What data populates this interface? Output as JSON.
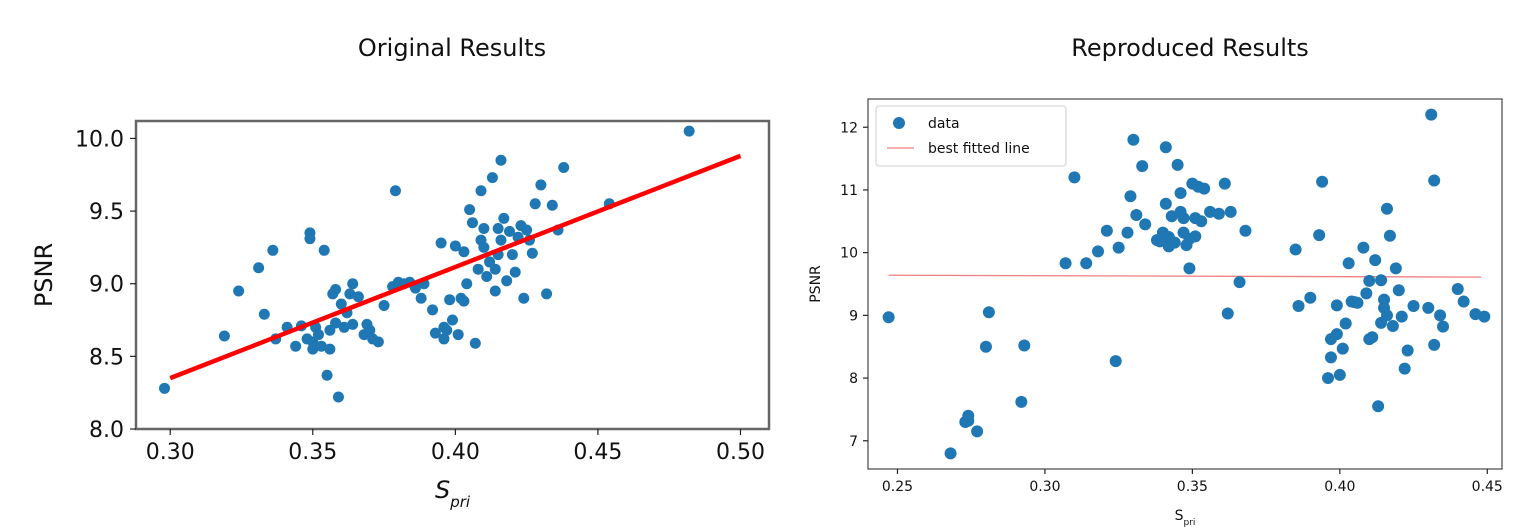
{
  "page": {
    "left_title": "Original Results",
    "right_title": "Reproduced Results"
  },
  "chart_data": [
    {
      "type": "scatter",
      "title": "Original Results",
      "xlabel": "S_pri",
      "xlabel_main": "S",
      "xlabel_sub": "pri",
      "ylabel": "PSNR",
      "xlim": [
        0.288,
        0.51
      ],
      "ylim": [
        8.0,
        10.12
      ],
      "xticks": [
        0.3,
        0.35,
        0.4,
        0.45,
        0.5
      ],
      "xtick_labels": [
        "0.30",
        "0.35",
        "0.40",
        "0.45",
        "0.50"
      ],
      "yticks": [
        8.0,
        8.5,
        9.0,
        9.5,
        10.0
      ],
      "ytick_labels": [
        "8.0",
        "8.5",
        "9.0",
        "9.5",
        "10.0"
      ],
      "grid": false,
      "legend": "none",
      "point_color": "#1f77b4",
      "line_color": "#ff0000",
      "fit_line": {
        "x": [
          0.3,
          0.5
        ],
        "y": [
          8.35,
          9.88
        ]
      },
      "x": [
        0.298,
        0.319,
        0.324,
        0.331,
        0.333,
        0.336,
        0.337,
        0.341,
        0.344,
        0.346,
        0.348,
        0.349,
        0.349,
        0.35,
        0.35,
        0.351,
        0.352,
        0.353,
        0.354,
        0.355,
        0.356,
        0.356,
        0.357,
        0.358,
        0.358,
        0.359,
        0.36,
        0.361,
        0.362,
        0.363,
        0.364,
        0.364,
        0.366,
        0.368,
        0.369,
        0.37,
        0.371,
        0.373,
        0.375,
        0.378,
        0.379,
        0.38,
        0.382,
        0.384,
        0.386,
        0.388,
        0.389,
        0.392,
        0.393,
        0.395,
        0.396,
        0.396,
        0.397,
        0.398,
        0.399,
        0.4,
        0.401,
        0.402,
        0.403,
        0.403,
        0.404,
        0.405,
        0.406,
        0.407,
        0.408,
        0.409,
        0.409,
        0.41,
        0.41,
        0.411,
        0.412,
        0.413,
        0.414,
        0.414,
        0.415,
        0.415,
        0.416,
        0.416,
        0.417,
        0.418,
        0.419,
        0.42,
        0.421,
        0.422,
        0.423,
        0.424,
        0.425,
        0.426,
        0.427,
        0.428,
        0.43,
        0.432,
        0.434,
        0.436,
        0.438,
        0.454,
        0.482
      ],
      "y": [
        8.28,
        8.64,
        8.95,
        9.11,
        8.79,
        9.23,
        8.62,
        8.7,
        8.57,
        8.71,
        8.62,
        9.35,
        9.31,
        8.6,
        8.55,
        8.7,
        8.65,
        8.57,
        9.23,
        8.37,
        8.55,
        8.68,
        8.93,
        8.73,
        8.96,
        8.22,
        8.86,
        8.7,
        8.8,
        8.93,
        9.0,
        8.72,
        8.91,
        8.65,
        8.72,
        8.68,
        8.62,
        8.6,
        8.85,
        8.98,
        9.64,
        9.01,
        9.0,
        9.01,
        8.97,
        8.9,
        9.0,
        8.82,
        8.66,
        9.28,
        8.7,
        8.62,
        8.68,
        8.89,
        8.75,
        9.26,
        8.65,
        8.9,
        8.88,
        9.22,
        9.0,
        9.51,
        9.42,
        8.59,
        9.1,
        9.3,
        9.64,
        9.25,
        9.38,
        9.05,
        9.15,
        9.73,
        9.1,
        8.95,
        9.2,
        9.38,
        9.85,
        9.3,
        9.45,
        9.02,
        9.36,
        9.2,
        9.08,
        9.32,
        9.4,
        8.9,
        9.37,
        9.3,
        9.21,
        9.55,
        9.68,
        8.93,
        9.54,
        9.37,
        9.8,
        9.55,
        10.05
      ],
      "points": [
        [
          0.298,
          8.28
        ],
        [
          0.319,
          8.64
        ],
        [
          0.324,
          8.95
        ],
        [
          0.331,
          9.11
        ],
        [
          0.333,
          8.79
        ],
        [
          0.336,
          9.23
        ],
        [
          0.337,
          8.62
        ],
        [
          0.341,
          8.7
        ],
        [
          0.344,
          8.57
        ],
        [
          0.346,
          8.71
        ],
        [
          0.348,
          8.62
        ],
        [
          0.349,
          9.35
        ],
        [
          0.349,
          9.31
        ],
        [
          0.35,
          8.6
        ],
        [
          0.35,
          8.55
        ],
        [
          0.351,
          8.7
        ],
        [
          0.352,
          8.65
        ],
        [
          0.353,
          8.57
        ],
        [
          0.354,
          9.23
        ],
        [
          0.355,
          8.37
        ],
        [
          0.356,
          8.55
        ],
        [
          0.356,
          8.68
        ],
        [
          0.357,
          8.93
        ],
        [
          0.358,
          8.73
        ],
        [
          0.358,
          8.96
        ],
        [
          0.359,
          8.22
        ],
        [
          0.36,
          8.86
        ],
        [
          0.361,
          8.7
        ],
        [
          0.362,
          8.8
        ],
        [
          0.363,
          8.93
        ],
        [
          0.364,
          9.0
        ],
        [
          0.364,
          8.72
        ],
        [
          0.366,
          8.91
        ],
        [
          0.368,
          8.65
        ],
        [
          0.369,
          8.72
        ],
        [
          0.37,
          8.68
        ],
        [
          0.371,
          8.62
        ],
        [
          0.373,
          8.6
        ],
        [
          0.375,
          8.85
        ],
        [
          0.378,
          8.98
        ],
        [
          0.379,
          9.64
        ],
        [
          0.38,
          9.01
        ],
        [
          0.382,
          9.0
        ],
        [
          0.384,
          9.01
        ],
        [
          0.386,
          8.97
        ],
        [
          0.388,
          8.9
        ],
        [
          0.389,
          9.0
        ],
        [
          0.392,
          8.82
        ],
        [
          0.393,
          8.66
        ],
        [
          0.395,
          9.28
        ],
        [
          0.396,
          8.7
        ],
        [
          0.396,
          8.62
        ],
        [
          0.397,
          8.68
        ],
        [
          0.398,
          8.89
        ],
        [
          0.399,
          8.75
        ],
        [
          0.4,
          9.26
        ],
        [
          0.401,
          8.65
        ],
        [
          0.402,
          8.9
        ],
        [
          0.403,
          8.88
        ],
        [
          0.403,
          9.22
        ],
        [
          0.404,
          9.0
        ],
        [
          0.405,
          9.51
        ],
        [
          0.406,
          9.42
        ],
        [
          0.407,
          8.59
        ],
        [
          0.408,
          9.1
        ],
        [
          0.409,
          9.3
        ],
        [
          0.409,
          9.64
        ],
        [
          0.41,
          9.25
        ],
        [
          0.41,
          9.38
        ],
        [
          0.411,
          9.05
        ],
        [
          0.412,
          9.15
        ],
        [
          0.413,
          9.73
        ],
        [
          0.414,
          9.1
        ],
        [
          0.414,
          8.95
        ],
        [
          0.415,
          9.2
        ],
        [
          0.415,
          9.38
        ],
        [
          0.416,
          9.85
        ],
        [
          0.416,
          9.3
        ],
        [
          0.417,
          9.45
        ],
        [
          0.418,
          9.02
        ],
        [
          0.419,
          9.36
        ],
        [
          0.42,
          9.2
        ],
        [
          0.421,
          9.08
        ],
        [
          0.422,
          9.32
        ],
        [
          0.423,
          9.4
        ],
        [
          0.424,
          8.9
        ],
        [
          0.425,
          9.37
        ],
        [
          0.426,
          9.3
        ],
        [
          0.427,
          9.21
        ],
        [
          0.428,
          9.55
        ],
        [
          0.43,
          9.68
        ],
        [
          0.432,
          8.93
        ],
        [
          0.434,
          9.54
        ],
        [
          0.436,
          9.37
        ],
        [
          0.438,
          9.8
        ],
        [
          0.454,
          9.55
        ],
        [
          0.482,
          10.05
        ]
      ]
    },
    {
      "type": "scatter",
      "title": "Reproduced Results",
      "xlabel": "S_pri",
      "xlabel_main": "S",
      "xlabel_sub": "pri",
      "ylabel": "PSNR",
      "xlim": [
        0.24,
        0.455
      ],
      "ylim": [
        6.55,
        12.45
      ],
      "xticks": [
        0.25,
        0.3,
        0.35,
        0.4,
        0.45
      ],
      "xtick_labels": [
        "0.25",
        "0.30",
        "0.35",
        "0.40",
        "0.45"
      ],
      "yticks": [
        7,
        8,
        9,
        10,
        11,
        12
      ],
      "ytick_labels": [
        "7",
        "8",
        "9",
        "10",
        "11",
        "12"
      ],
      "grid": false,
      "legend": "top-left",
      "legend_entries": [
        "data",
        "best fitted line"
      ],
      "point_color": "#1f77b4",
      "line_color": "#f08080",
      "fit_line": {
        "x": [
          0.247,
          0.448
        ],
        "y": [
          9.64,
          9.61
        ]
      },
      "x": [
        0.247,
        0.268,
        0.273,
        0.274,
        0.274,
        0.277,
        0.28,
        0.281,
        0.292,
        0.293,
        0.307,
        0.31,
        0.314,
        0.318,
        0.321,
        0.324,
        0.325,
        0.328,
        0.329,
        0.33,
        0.331,
        0.333,
        0.334,
        0.338,
        0.339,
        0.34,
        0.341,
        0.341,
        0.342,
        0.342,
        0.343,
        0.344,
        0.345,
        0.346,
        0.346,
        0.347,
        0.347,
        0.348,
        0.349,
        0.349,
        0.35,
        0.351,
        0.351,
        0.352,
        0.353,
        0.354,
        0.356,
        0.359,
        0.361,
        0.362,
        0.363,
        0.366,
        0.368,
        0.385,
        0.386,
        0.39,
        0.393,
        0.394,
        0.396,
        0.397,
        0.397,
        0.399,
        0.399,
        0.4,
        0.401,
        0.402,
        0.403,
        0.404,
        0.405,
        0.406,
        0.408,
        0.409,
        0.41,
        0.41,
        0.411,
        0.412,
        0.413,
        0.414,
        0.414,
        0.415,
        0.415,
        0.416,
        0.416,
        0.417,
        0.418,
        0.419,
        0.42,
        0.421,
        0.422,
        0.423,
        0.425,
        0.43,
        0.431,
        0.432,
        0.432,
        0.434,
        0.435,
        0.44,
        0.442,
        0.446,
        0.449
      ],
      "y": [
        8.97,
        6.8,
        7.3,
        7.4,
        7.32,
        7.15,
        8.5,
        9.05,
        7.62,
        8.52,
        9.83,
        11.2,
        9.83,
        10.02,
        10.35,
        8.27,
        10.08,
        10.32,
        10.9,
        11.8,
        10.6,
        11.38,
        10.45,
        10.2,
        10.18,
        10.32,
        11.68,
        10.78,
        10.1,
        10.25,
        10.58,
        10.16,
        11.4,
        10.65,
        10.95,
        10.32,
        10.55,
        10.12,
        9.75,
        10.22,
        11.1,
        10.55,
        10.26,
        11.05,
        10.5,
        11.02,
        10.65,
        10.62,
        11.1,
        9.03,
        10.65,
        9.53,
        10.35,
        10.05,
        9.15,
        9.28,
        10.28,
        11.13,
        8.0,
        8.33,
        8.62,
        9.16,
        8.7,
        8.05,
        8.47,
        8.87,
        9.83,
        9.22,
        9.21,
        9.2,
        10.08,
        9.35,
        8.62,
        9.55,
        8.65,
        9.88,
        7.55,
        9.56,
        8.88,
        9.25,
        9.12,
        9.0,
        10.7,
        10.27,
        8.83,
        9.75,
        9.4,
        8.98,
        8.15,
        8.44,
        9.15,
        9.12,
        12.2,
        8.53,
        11.15,
        9.0,
        8.82,
        9.42,
        9.22,
        9.02,
        8.98
      ],
      "points": [
        [
          0.247,
          8.97
        ],
        [
          0.268,
          6.8
        ],
        [
          0.273,
          7.3
        ],
        [
          0.274,
          7.4
        ],
        [
          0.274,
          7.32
        ],
        [
          0.277,
          7.15
        ],
        [
          0.28,
          8.5
        ],
        [
          0.281,
          9.05
        ],
        [
          0.292,
          7.62
        ],
        [
          0.293,
          8.52
        ],
        [
          0.307,
          9.83
        ],
        [
          0.31,
          11.2
        ],
        [
          0.314,
          9.83
        ],
        [
          0.318,
          10.02
        ],
        [
          0.321,
          10.35
        ],
        [
          0.324,
          8.27
        ],
        [
          0.325,
          10.08
        ],
        [
          0.328,
          10.32
        ],
        [
          0.329,
          10.9
        ],
        [
          0.33,
          11.8
        ],
        [
          0.331,
          10.6
        ],
        [
          0.333,
          11.38
        ],
        [
          0.334,
          10.45
        ],
        [
          0.338,
          10.2
        ],
        [
          0.339,
          10.18
        ],
        [
          0.34,
          10.32
        ],
        [
          0.341,
          11.68
        ],
        [
          0.341,
          10.78
        ],
        [
          0.342,
          10.1
        ],
        [
          0.342,
          10.25
        ],
        [
          0.343,
          10.58
        ],
        [
          0.344,
          10.16
        ],
        [
          0.345,
          11.4
        ],
        [
          0.346,
          10.65
        ],
        [
          0.346,
          10.95
        ],
        [
          0.347,
          10.32
        ],
        [
          0.347,
          10.55
        ],
        [
          0.348,
          10.12
        ],
        [
          0.349,
          9.75
        ],
        [
          0.349,
          10.22
        ],
        [
          0.35,
          11.1
        ],
        [
          0.351,
          10.55
        ],
        [
          0.351,
          10.26
        ],
        [
          0.352,
          11.05
        ],
        [
          0.353,
          10.5
        ],
        [
          0.354,
          11.02
        ],
        [
          0.356,
          10.65
        ],
        [
          0.359,
          10.62
        ],
        [
          0.361,
          11.1
        ],
        [
          0.362,
          9.03
        ],
        [
          0.363,
          10.65
        ],
        [
          0.366,
          9.53
        ],
        [
          0.368,
          10.35
        ],
        [
          0.385,
          10.05
        ],
        [
          0.386,
          9.15
        ],
        [
          0.39,
          9.28
        ],
        [
          0.393,
          10.28
        ],
        [
          0.394,
          11.13
        ],
        [
          0.396,
          8.0
        ],
        [
          0.397,
          8.33
        ],
        [
          0.397,
          8.62
        ],
        [
          0.399,
          9.16
        ],
        [
          0.399,
          8.7
        ],
        [
          0.4,
          8.05
        ],
        [
          0.401,
          8.47
        ],
        [
          0.402,
          8.87
        ],
        [
          0.403,
          9.83
        ],
        [
          0.404,
          9.22
        ],
        [
          0.405,
          9.21
        ],
        [
          0.406,
          9.2
        ],
        [
          0.408,
          10.08
        ],
        [
          0.409,
          9.35
        ],
        [
          0.41,
          8.62
        ],
        [
          0.41,
          9.55
        ],
        [
          0.411,
          8.65
        ],
        [
          0.412,
          9.88
        ],
        [
          0.413,
          7.55
        ],
        [
          0.414,
          9.56
        ],
        [
          0.414,
          8.88
        ],
        [
          0.415,
          9.25
        ],
        [
          0.415,
          9.12
        ],
        [
          0.416,
          9.0
        ],
        [
          0.416,
          10.7
        ],
        [
          0.417,
          10.27
        ],
        [
          0.418,
          8.83
        ],
        [
          0.419,
          9.75
        ],
        [
          0.42,
          9.4
        ],
        [
          0.421,
          8.98
        ],
        [
          0.422,
          8.15
        ],
        [
          0.423,
          8.44
        ],
        [
          0.425,
          9.15
        ],
        [
          0.43,
          9.12
        ],
        [
          0.431,
          12.2
        ],
        [
          0.432,
          8.53
        ],
        [
          0.432,
          11.15
        ],
        [
          0.434,
          9.0
        ],
        [
          0.435,
          8.82
        ],
        [
          0.44,
          9.42
        ],
        [
          0.442,
          9.22
        ],
        [
          0.446,
          9.02
        ],
        [
          0.449,
          8.98
        ]
      ]
    }
  ]
}
